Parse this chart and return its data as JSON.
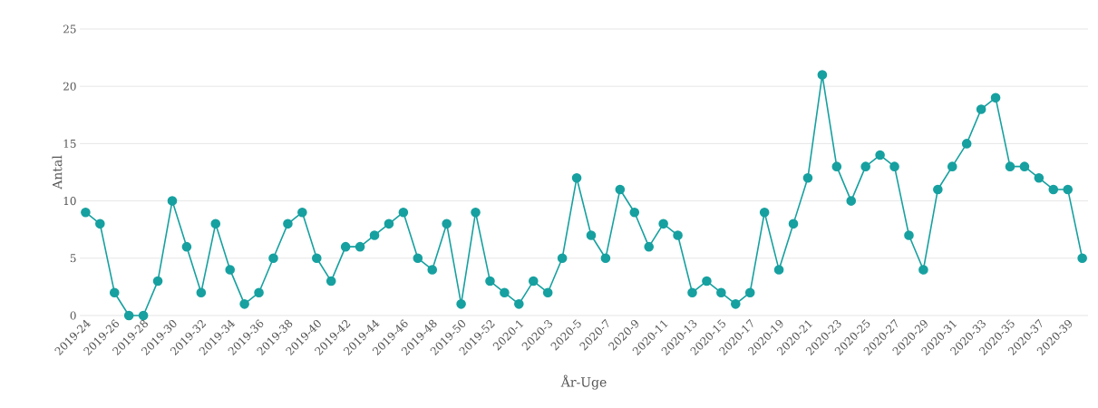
{
  "chart_data": {
    "type": "line",
    "xlabel": "År-Uge",
    "ylabel": "Antal",
    "categories": [
      "2019-24",
      null,
      "2019-26",
      null,
      "2019-28",
      null,
      "2019-30",
      null,
      "2019-32",
      null,
      "2019-34",
      null,
      "2019-36",
      null,
      "2019-38",
      null,
      "2019-40",
      null,
      "2019-42",
      null,
      "2019-44",
      null,
      "2019-46",
      null,
      "2019-48",
      null,
      "2019-50",
      null,
      "2019-52",
      null,
      "2020-1",
      null,
      "2020-3",
      null,
      "2020-5",
      null,
      "2020-7",
      null,
      "2020-9",
      null,
      "2020-11",
      null,
      "2020-13",
      null,
      "2020-15",
      null,
      "2020-17",
      null,
      "2020-19",
      null,
      "2020-21",
      null,
      "2020-23",
      null,
      "2020-25",
      null,
      "2020-27",
      null,
      "2020-29",
      null,
      "2020-31",
      null,
      "2020-33",
      null,
      "2020-35",
      null,
      "2020-37",
      null,
      "2020-39",
      null
    ],
    "values": [
      9,
      8,
      2,
      0,
      0,
      3,
      10,
      6,
      2,
      8,
      4,
      1,
      2,
      5,
      8,
      9,
      5,
      3,
      6,
      6,
      7,
      8,
      9,
      5,
      4,
      8,
      1,
      9,
      3,
      2,
      1,
      3,
      2,
      5,
      12,
      7,
      5,
      11,
      9,
      6,
      8,
      7,
      2,
      3,
      2,
      1,
      2,
      9,
      4,
      8,
      12,
      21,
      13,
      10,
      13,
      14,
      13,
      7,
      4,
      11,
      13,
      15,
      18,
      19,
      13,
      13,
      12,
      11,
      11,
      5
    ],
    "color": "#17a0a0",
    "ylim": [
      0,
      25
    ],
    "yticks": [
      0,
      5,
      10,
      15,
      20,
      25
    ],
    "grid": "y",
    "marker": "circle",
    "line_style": "solid"
  }
}
